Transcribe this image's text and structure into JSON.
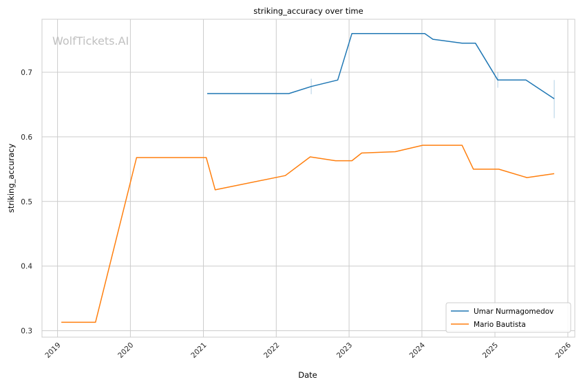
{
  "chart_data": {
    "type": "line",
    "title": "striking_accuracy over time",
    "xlabel": "Date",
    "ylabel": "striking_accuracy",
    "watermark": "WolfTickets.AI",
    "xlim": [
      "2018-10-15",
      "2026-02-05"
    ],
    "ylim": [
      0.29,
      0.782
    ],
    "xticks": [
      {
        "label": "2019",
        "date": "2019-01-01"
      },
      {
        "label": "2020",
        "date": "2020-01-01"
      },
      {
        "label": "2021",
        "date": "2021-01-01"
      },
      {
        "label": "2022",
        "date": "2022-01-01"
      },
      {
        "label": "2023",
        "date": "2023-01-01"
      },
      {
        "label": "2024",
        "date": "2024-01-01"
      },
      {
        "label": "2025",
        "date": "2025-01-01"
      },
      {
        "label": "2026",
        "date": "2026-01-01"
      }
    ],
    "yticks": [
      {
        "label": "0.3",
        "value": 0.3
      },
      {
        "label": "0.4",
        "value": 0.4
      },
      {
        "label": "0.5",
        "value": 0.5
      },
      {
        "label": "0.6",
        "value": 0.6
      },
      {
        "label": "0.7",
        "value": 0.7
      }
    ],
    "grid": true,
    "legend_position": "bottom-right",
    "series": [
      {
        "name": "Umar Nurmagomedov",
        "color": "#1f77b4",
        "points": [
          {
            "x": "2021-01-20",
            "y": 0.667
          },
          {
            "x": "2022-03-05",
            "y": 0.667
          },
          {
            "x": "2022-06-25",
            "y": 0.678
          },
          {
            "x": "2022-11-05",
            "y": 0.688
          },
          {
            "x": "2023-01-15",
            "y": 0.76
          },
          {
            "x": "2024-01-15",
            "y": 0.76
          },
          {
            "x": "2024-02-25",
            "y": 0.751
          },
          {
            "x": "2024-07-20",
            "y": 0.745
          },
          {
            "x": "2024-09-25",
            "y": 0.745
          },
          {
            "x": "2025-01-15",
            "y": 0.688
          },
          {
            "x": "2025-06-05",
            "y": 0.688
          },
          {
            "x": "2025-10-25",
            "y": 0.659
          }
        ],
        "error_bars": [
          {
            "x": "2022-06-25",
            "low": 0.666,
            "high": 0.69
          },
          {
            "x": "2025-01-15",
            "low": 0.676,
            "high": 0.7
          },
          {
            "x": "2025-10-25",
            "low": 0.629,
            "high": 0.688
          }
        ]
      },
      {
        "name": "Mario Bautista",
        "color": "#ff7f0e",
        "points": [
          {
            "x": "2019-01-20",
            "y": 0.313
          },
          {
            "x": "2019-07-10",
            "y": 0.313
          },
          {
            "x": "2020-02-01",
            "y": 0.568
          },
          {
            "x": "2021-01-15",
            "y": 0.568
          },
          {
            "x": "2021-03-01",
            "y": 0.518
          },
          {
            "x": "2022-02-15",
            "y": 0.54
          },
          {
            "x": "2022-06-20",
            "y": 0.569
          },
          {
            "x": "2022-10-25",
            "y": 0.563
          },
          {
            "x": "2023-01-15",
            "y": 0.563
          },
          {
            "x": "2023-03-05",
            "y": 0.575
          },
          {
            "x": "2023-08-20",
            "y": 0.577
          },
          {
            "x": "2024-01-05",
            "y": 0.587
          },
          {
            "x": "2024-07-20",
            "y": 0.587
          },
          {
            "x": "2024-09-15",
            "y": 0.55
          },
          {
            "x": "2025-01-20",
            "y": 0.55
          },
          {
            "x": "2025-06-10",
            "y": 0.537
          },
          {
            "x": "2025-10-25",
            "y": 0.543
          }
        ]
      }
    ]
  }
}
